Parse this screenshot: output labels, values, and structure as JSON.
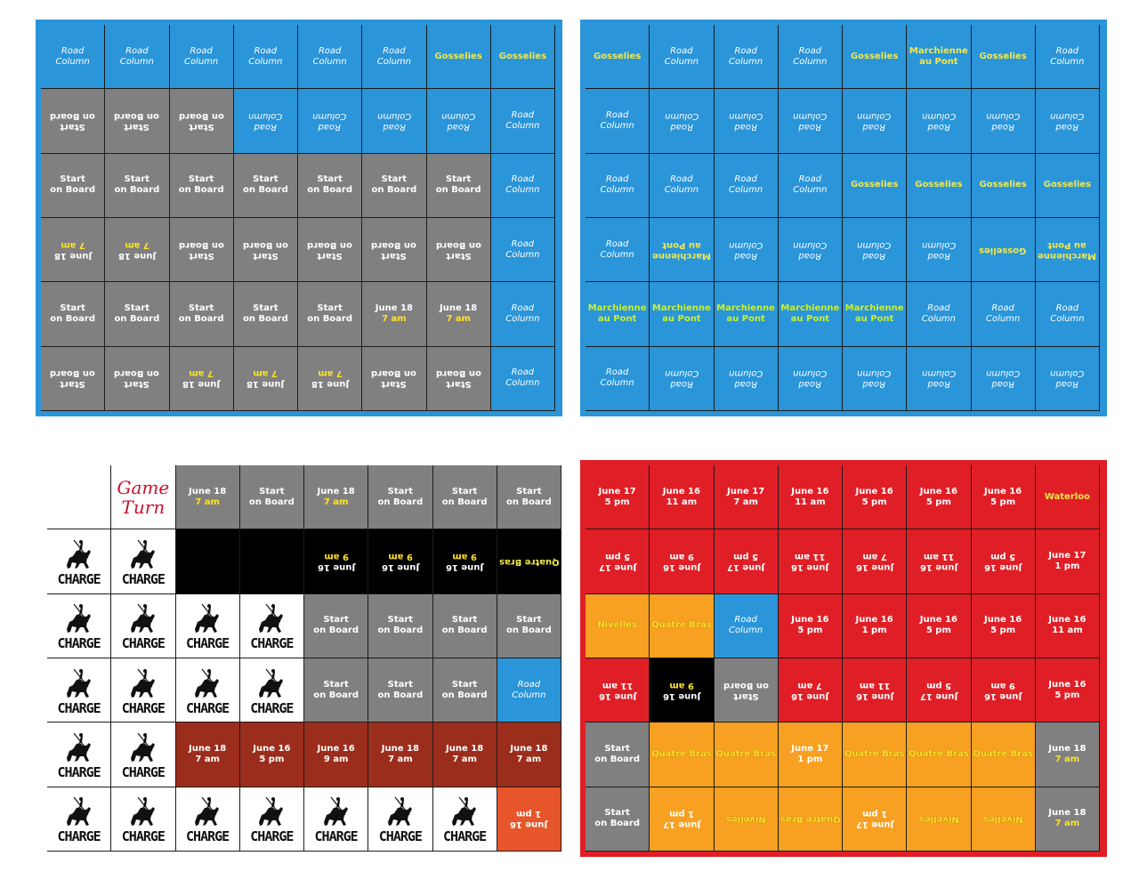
{
  "sheets": {
    "top_left": {
      "cells": [
        [
          "Road|Column",
          "Road|Column",
          "Road|Column",
          "Road|Column",
          "Road|Column",
          "Road|Column",
          "Gosselies",
          "Gosselies"
        ],
        [
          "Start|on Board",
          "Start|on Board",
          "Start|on Board",
          "Road|Column",
          "Road|Column",
          "Road|Column",
          "Road|Column",
          "Road|Column"
        ],
        [
          "Start|on Board",
          "Start|on Board",
          "Start|on Board",
          "Start|on Board",
          "Start|on Board",
          "Start|on Board",
          "Start|on Board",
          "Road|Column"
        ],
        [
          "June 18|7 am",
          "June 18|7 am",
          "Start|on Board",
          "Start|on Board",
          "Start|on Board",
          "Start|on Board",
          "Start|on Board",
          "Road|Column"
        ],
        [
          "Start|on Board",
          "Start|on Board",
          "Start|on Board",
          "Start|on Board",
          "Start|on Board",
          "June 18|7 am",
          "June 18|7 am",
          "Road|Column"
        ],
        [
          "Start|on Board",
          "Start|on Board",
          "June 18|7 am",
          "June 18|7 am",
          "June 18|7 am",
          "Start|on Board",
          "Start|on Board",
          "Road|Column"
        ]
      ]
    },
    "top_right": {
      "cells": [
        [
          "Gosselies",
          "Road|Column",
          "Road|Column",
          "Road|Column",
          "Gosselies",
          "Marchienne|au Pont",
          "Gosselies",
          "Road|Column"
        ],
        [
          "Road|Column",
          "Road|Column",
          "Road|Column",
          "Road|Column",
          "Road|Column",
          "Road|Column",
          "Road|Column",
          "Road|Column"
        ],
        [
          "Road|Column",
          "Road|Column",
          "Road|Column",
          "Road|Column",
          "Gosselies",
          "Gosselies",
          "Gosselies",
          "Gosselies"
        ],
        [
          "Road|Column",
          "Marchienne|au Pont",
          "Road|Column",
          "Road|Column",
          "Road|Column",
          "Road|Column",
          "Gosselies",
          "Marchienne|au Pont"
        ],
        [
          "Marchienne|au Pont",
          "Marchienne|au Pont",
          "Marchienne|au Pont",
          "Marchienne|au Pont",
          "Marchienne|au Pont",
          "Road|Column",
          "Road|Column",
          "Road|Column"
        ],
        [
          "Road|Column",
          "Road|Column",
          "Road|Column",
          "Road|Column",
          "Road|Column",
          "Road|Column",
          "Road|Column",
          "Road|Column"
        ]
      ]
    },
    "bottom_left": {
      "title": "Game|Turn",
      "charge_label": "CHARGE",
      "cells": [
        [
          "",
          "Game|Turn",
          "June 18|7 am",
          "Start|on Board",
          "June 18|7 am",
          "Start|on Board",
          "Start|on Board",
          "Start|on Board"
        ],
        [
          "CHARGE",
          "CHARGE",
          "",
          "",
          "June 16|9 am",
          "June 16|9 am",
          "June 16|9 am",
          "Quatre Bras"
        ],
        [
          "CHARGE",
          "CHARGE",
          "CHARGE",
          "CHARGE",
          "Start|on Board",
          "Start|on Board",
          "Start|on Board",
          "Start|on Board"
        ],
        [
          "CHARGE",
          "CHARGE",
          "CHARGE",
          "CHARGE",
          "Start|on Board",
          "Start|on Board",
          "Start|on Board",
          "Road|Column"
        ],
        [
          "CHARGE",
          "CHARGE",
          "June 18|7 am",
          "June 16|5 pm",
          "June 16|9 am",
          "June 18|7 am",
          "June 18|7 am",
          "June 18|7 am"
        ],
        [
          "CHARGE",
          "CHARGE",
          "CHARGE",
          "CHARGE",
          "CHARGE",
          "CHARGE",
          "CHARGE",
          "June 16|1 pm"
        ]
      ]
    },
    "bottom_right": {
      "cells": [
        [
          "June 17|5 pm",
          "June 16|11 am",
          "June 17|7 am",
          "June 16|11 am",
          "June 16|5 pm",
          "June 16|5 pm",
          "June 16|5 pm",
          "Waterloo"
        ],
        [
          "June 17|5 pm",
          "June 16|9 am",
          "June 17|5 pm",
          "June 16|11 am",
          "June 16|7 am",
          "June 16|11 am",
          "June 16|5 pm",
          "June 17|1 pm"
        ],
        [
          "Nivelles",
          "Quatre Bras",
          "Road|Column",
          "June 16|5 pm",
          "June 16|1 pm",
          "June 16|5 pm",
          "June 16|5 pm",
          "June 16|11 am"
        ],
        [
          "June 16|11 am",
          "June 16|9 am",
          "Start|on Board",
          "June 16|7 am",
          "June 16|11 am",
          "June 17|5 pm",
          "June 16|9 am",
          "June 16|5 pm"
        ],
        [
          "Start|on Board",
          "Quatre Bras",
          "Quatre Bras",
          "June 17|1 pm",
          "Quatre Bras",
          "Quatre Bras",
          "Quatre Bras",
          "June 18|7 am"
        ],
        [
          "Start|on Board",
          "June 17|1 pm",
          "Nivelles",
          "Quatre Bras",
          "June 17|1 pm",
          "Nivelles",
          "Nivelles",
          "June 18|7 am"
        ]
      ]
    }
  },
  "colors": {
    "blue": "#2a95d9",
    "grey": "#808080",
    "red": "#e01e26",
    "orange": "#f7a021",
    "black": "#000000",
    "brown": "#9b2d1c",
    "vermilion": "#e7562b",
    "yellow_text": "#f2e84a",
    "title_red": "#c8102e"
  }
}
